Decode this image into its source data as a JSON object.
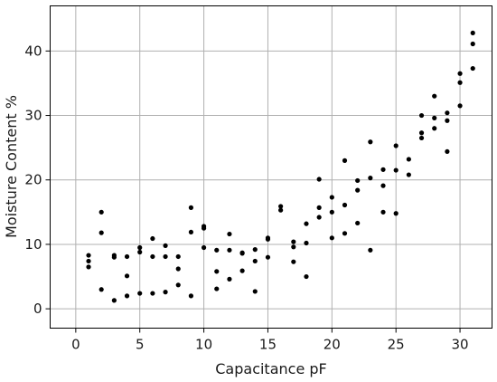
{
  "chart_data": {
    "type": "scatter",
    "xlabel": "Capacitance pF",
    "ylabel": "Moisture Content %",
    "xlim": [
      -2,
      32.5
    ],
    "ylim": [
      -3,
      47
    ],
    "xticks": [
      0,
      5,
      10,
      15,
      20,
      25,
      30
    ],
    "yticks": [
      0,
      10,
      20,
      30,
      40
    ],
    "grid": true,
    "marker_color": "#000000",
    "points": [
      [
        1,
        8.3
      ],
      [
        1,
        7.4
      ],
      [
        1,
        6.5
      ],
      [
        2,
        15.0
      ],
      [
        2,
        11.8
      ],
      [
        2,
        3.0
      ],
      [
        3,
        8.3
      ],
      [
        3,
        8.0
      ],
      [
        3,
        1.3
      ],
      [
        4,
        8.1
      ],
      [
        4,
        5.1
      ],
      [
        4,
        2.0
      ],
      [
        5,
        9.5
      ],
      [
        5,
        8.8
      ],
      [
        5,
        2.4
      ],
      [
        6,
        10.9
      ],
      [
        6,
        8.1
      ],
      [
        6,
        2.4
      ],
      [
        7,
        9.8
      ],
      [
        7,
        8.1
      ],
      [
        7,
        2.6
      ],
      [
        8,
        8.1
      ],
      [
        8,
        6.2
      ],
      [
        8,
        3.7
      ],
      [
        9,
        15.7
      ],
      [
        9,
        11.9
      ],
      [
        9,
        2.0
      ],
      [
        10,
        12.8
      ],
      [
        10,
        12.5
      ],
      [
        10,
        9.5
      ],
      [
        11,
        9.1
      ],
      [
        11,
        5.8
      ],
      [
        11,
        3.1
      ],
      [
        12,
        11.6
      ],
      [
        12,
        9.1
      ],
      [
        12,
        4.6
      ],
      [
        13,
        8.7
      ],
      [
        13,
        8.6
      ],
      [
        13,
        5.9
      ],
      [
        14,
        9.2
      ],
      [
        14,
        7.4
      ],
      [
        14,
        2.7
      ],
      [
        15,
        11.0
      ],
      [
        15,
        10.8
      ],
      [
        15,
        8.0
      ],
      [
        16,
        15.9
      ],
      [
        16,
        15.3
      ],
      [
        17,
        10.4
      ],
      [
        17,
        9.6
      ],
      [
        17,
        7.3
      ],
      [
        18,
        13.2
      ],
      [
        18,
        10.2
      ],
      [
        18,
        5.0
      ],
      [
        19,
        20.1
      ],
      [
        19,
        15.7
      ],
      [
        19,
        14.2
      ],
      [
        20,
        17.3
      ],
      [
        20,
        15.0
      ],
      [
        20,
        11.0
      ],
      [
        21,
        23.0
      ],
      [
        21,
        16.1
      ],
      [
        21,
        11.7
      ],
      [
        22,
        19.9
      ],
      [
        22,
        18.4
      ],
      [
        22,
        13.3
      ],
      [
        23,
        25.9
      ],
      [
        23,
        20.3
      ],
      [
        23,
        9.1
      ],
      [
        24,
        21.6
      ],
      [
        24,
        19.1
      ],
      [
        24,
        15.0
      ],
      [
        25,
        25.3
      ],
      [
        25,
        21.5
      ],
      [
        25,
        14.8
      ],
      [
        26,
        23.2
      ],
      [
        26,
        20.8
      ],
      [
        27,
        30.0
      ],
      [
        27,
        27.3
      ],
      [
        27,
        26.5
      ],
      [
        28,
        33.0
      ],
      [
        28,
        29.6
      ],
      [
        28,
        28.0
      ],
      [
        29,
        30.4
      ],
      [
        29,
        29.2
      ],
      [
        29,
        24.4
      ],
      [
        30,
        36.5
      ],
      [
        30,
        35.1
      ],
      [
        30,
        31.5
      ],
      [
        31,
        42.8
      ],
      [
        31,
        41.1
      ],
      [
        31,
        37.3
      ]
    ]
  }
}
